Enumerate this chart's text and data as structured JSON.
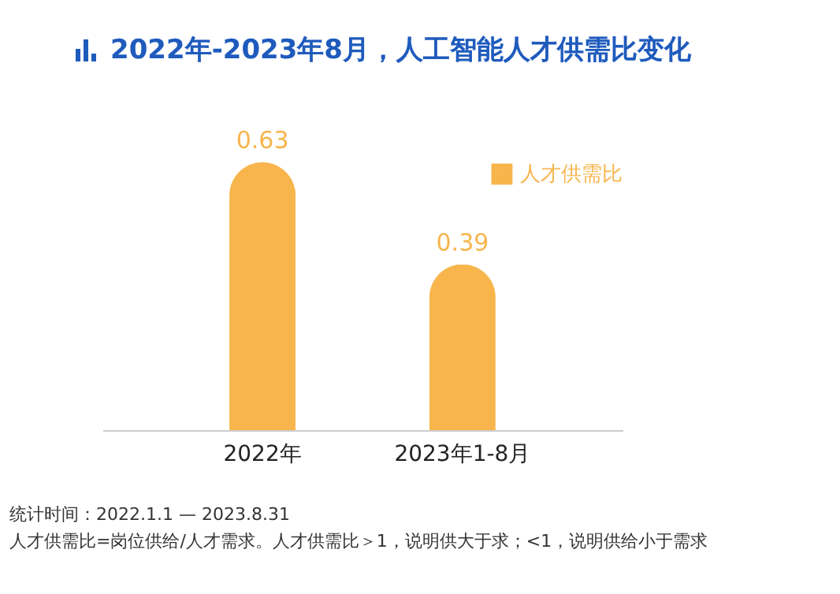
{
  "chart_data": {
    "type": "bar",
    "title": "2022年-2023年8月，人工智能人才供需比变化",
    "categories": [
      "2022年",
      "2023年1-8月"
    ],
    "series": [
      {
        "name": "人才供需比",
        "color": "#f7b54c",
        "values": [
          0.63,
          0.39
        ]
      }
    ],
    "data_labels": true,
    "legend": "top right",
    "tick_labels": "x",
    "annotations": [
      "统计时间：2022.1.1 — 2023.8.31",
      "人才供需比=岗位供给/人才需求。人才供需比＞1，说明供大于求；<1，说明供给小于需求"
    ]
  }
}
